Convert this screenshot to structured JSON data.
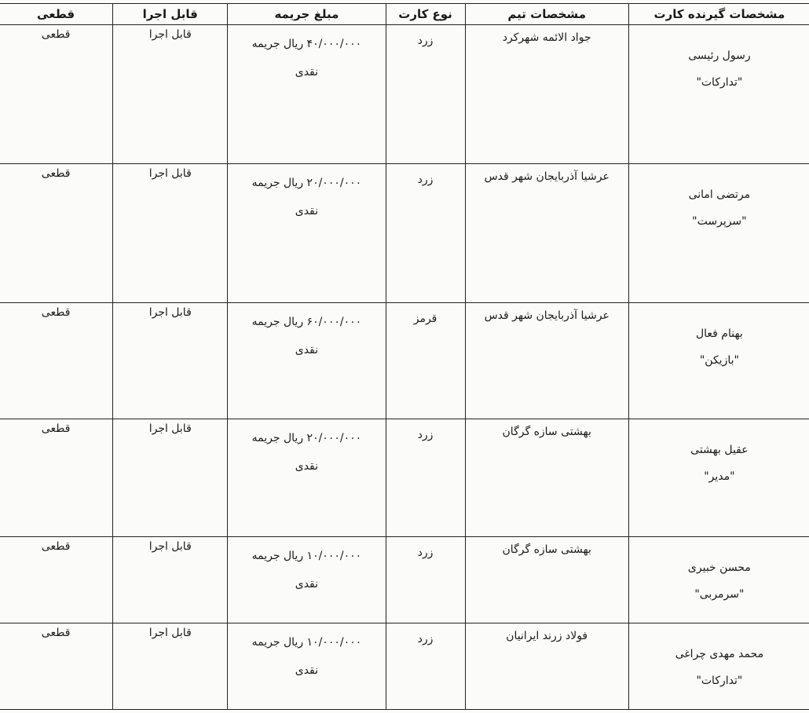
{
  "header_strip": "",
  "columns": {
    "person": "مشخصات گیرنده کارت",
    "team": "مشخصات تیم",
    "card": "نوع کارت",
    "fine": "مبلغ جریمه",
    "executable": "قابل اجرا",
    "final": "قطعی"
  },
  "rows": [
    {
      "name": "رسول رئیسی",
      "role": "\"تدارکات\"",
      "team": "جواد الائمه شهرکرد",
      "card": "زرد",
      "fine": "۴۰/۰۰۰/۰۰۰ ریال جریمه",
      "fine_type": "نقدی",
      "executable": "قابل اجرا",
      "final": "قطعی"
    },
    {
      "name": "مرتضی امانی",
      "role": "\"سرپرست\"",
      "team": "عرشیا آذربایجان شهر قدس",
      "card": "زرد",
      "fine": "۲۰/۰۰۰/۰۰۰ ریال جریمه",
      "fine_type": "نقدی",
      "executable": "قابل اجرا",
      "final": "قطعی"
    },
    {
      "name": "بهنام فعال",
      "role": "\"بازیکن\"",
      "team": "عرشیا آذربایجان شهر قدس",
      "card": "قرمز",
      "fine": "۶۰/۰۰۰/۰۰۰ ریال جریمه",
      "fine_type": "نقدی",
      "executable": "قابل اجرا",
      "final": "قطعی"
    },
    {
      "name": "عقیل بهشتی",
      "role": "\"مدیر\"",
      "team": "بهشتی سازه گرگان",
      "card": "زرد",
      "fine": "۲۰/۰۰۰/۰۰۰ ریال جریمه",
      "fine_type": "نقدی",
      "executable": "قابل اجرا",
      "final": "قطعی"
    },
    {
      "name": "محسن خبیری",
      "role": "\"سرمربی\"",
      "team": "بهشتی سازه گرگان",
      "card": "زرد",
      "fine": "۱۰/۰۰۰/۰۰۰ ریال جریمه",
      "fine_type": "نقدی",
      "executable": "قابل اجرا",
      "final": "قطعی"
    },
    {
      "name": "محمد مهدی چراغی",
      "role": "\"تدارکات\"",
      "team": "فولاد زرند ایرانیان",
      "card": "زرد",
      "fine": "۱۰/۰۰۰/۰۰۰ ریال جریمه",
      "fine_type": "نقدی",
      "executable": "قابل اجرا",
      "final": "قطعی"
    }
  ]
}
